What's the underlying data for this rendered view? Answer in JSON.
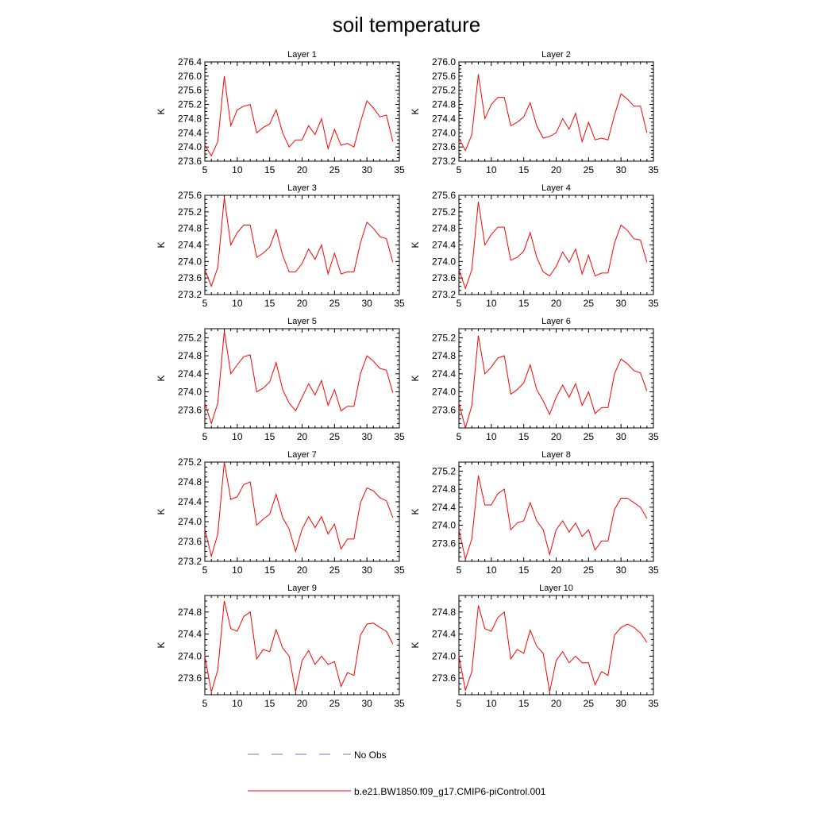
{
  "title": "soil temperature",
  "legend": {
    "items": [
      {
        "label": "No Obs",
        "color": "#7777cc",
        "dash": "dashed"
      },
      {
        "label": "b.e21.BW1850.f09_g17.CMIP6-piControl.001",
        "color": "#ff0000",
        "dash": "solid"
      }
    ]
  },
  "chart_data": [
    {
      "type": "line",
      "title": "Layer 1",
      "ylabel": "K",
      "xlim": [
        5,
        35
      ],
      "xticks": [
        5,
        10,
        15,
        20,
        25,
        30,
        35
      ],
      "ylim": [
        273.6,
        276.4
      ],
      "yticks": [
        273.6,
        274.0,
        274.4,
        274.8,
        275.2,
        275.6,
        276.0,
        276.4
      ],
      "x": [
        5,
        6,
        7,
        8,
        9,
        10,
        11,
        12,
        13,
        14,
        15,
        16,
        17,
        18,
        19,
        20,
        21,
        22,
        23,
        24,
        25,
        26,
        27,
        28,
        29,
        30,
        31,
        32,
        33,
        34
      ],
      "series": [
        {
          "name": "b.e21.BW1850.f09_g17.CMIP6-piControl.001",
          "values": [
            274.05,
            273.75,
            274.15,
            276.0,
            274.6,
            275.05,
            275.15,
            275.2,
            274.4,
            274.55,
            274.65,
            275.05,
            274.4,
            274.0,
            274.2,
            274.2,
            274.6,
            274.35,
            274.8,
            273.95,
            274.5,
            274.05,
            274.1,
            274.0,
            274.7,
            275.3,
            275.1,
            274.85,
            274.9,
            274.15
          ]
        }
      ]
    },
    {
      "type": "line",
      "title": "Layer 2",
      "ylabel": "K",
      "xlim": [
        5,
        35
      ],
      "xticks": [
        5,
        10,
        15,
        20,
        25,
        30,
        35
      ],
      "ylim": [
        273.2,
        276.0
      ],
      "yticks": [
        273.2,
        273.6,
        274.0,
        274.4,
        274.8,
        275.2,
        275.6,
        276.0
      ],
      "x": [
        5,
        6,
        7,
        8,
        9,
        10,
        11,
        12,
        13,
        14,
        15,
        16,
        17,
        18,
        19,
        20,
        21,
        22,
        23,
        24,
        25,
        26,
        27,
        28,
        29,
        30,
        31,
        32,
        33,
        34
      ],
      "series": [
        {
          "name": "b.e21.BW1850.f09_g17.CMIP6-piControl.001",
          "values": [
            273.85,
            273.5,
            273.95,
            275.65,
            274.4,
            274.8,
            275.0,
            275.0,
            274.2,
            274.3,
            274.45,
            274.85,
            274.2,
            273.85,
            273.9,
            274.0,
            274.4,
            274.1,
            274.55,
            273.75,
            274.3,
            273.8,
            273.85,
            273.8,
            274.5,
            275.1,
            274.95,
            274.75,
            274.75,
            274.0
          ]
        }
      ]
    },
    {
      "type": "line",
      "title": "Layer 3",
      "ylabel": "K",
      "xlim": [
        5,
        35
      ],
      "xticks": [
        5,
        10,
        15,
        20,
        25,
        30,
        35
      ],
      "ylim": [
        273.2,
        275.6
      ],
      "yticks": [
        273.2,
        273.6,
        274.0,
        274.4,
        274.8,
        275.2,
        275.6
      ],
      "x": [
        5,
        6,
        7,
        8,
        9,
        10,
        11,
        12,
        13,
        14,
        15,
        16,
        17,
        18,
        19,
        20,
        21,
        22,
        23,
        24,
        25,
        26,
        27,
        28,
        29,
        30,
        31,
        32,
        33,
        34
      ],
      "series": [
        {
          "name": "b.e21.BW1850.f09_g17.CMIP6-piControl.001",
          "values": [
            273.8,
            273.4,
            273.85,
            275.55,
            274.4,
            274.7,
            274.88,
            274.88,
            274.1,
            274.2,
            274.35,
            274.77,
            274.15,
            273.75,
            273.75,
            273.95,
            274.3,
            274.05,
            274.4,
            273.7,
            274.2,
            273.7,
            273.75,
            273.75,
            274.45,
            274.95,
            274.8,
            274.6,
            274.55,
            273.98
          ]
        }
      ]
    },
    {
      "type": "line",
      "title": "Layer 4",
      "ylabel": "K",
      "xlim": [
        5,
        35
      ],
      "xticks": [
        5,
        10,
        15,
        20,
        25,
        30,
        35
      ],
      "ylim": [
        273.2,
        275.6
      ],
      "yticks": [
        273.2,
        273.6,
        274.0,
        274.4,
        274.8,
        275.2,
        275.6
      ],
      "x": [
        5,
        6,
        7,
        8,
        9,
        10,
        11,
        12,
        13,
        14,
        15,
        16,
        17,
        18,
        19,
        20,
        21,
        22,
        23,
        24,
        25,
        26,
        27,
        28,
        29,
        30,
        31,
        32,
        33,
        34
      ],
      "series": [
        {
          "name": "b.e21.BW1850.f09_g17.CMIP6-piControl.001",
          "values": [
            273.8,
            273.35,
            273.8,
            275.45,
            274.4,
            274.65,
            274.83,
            274.83,
            274.03,
            274.1,
            274.25,
            274.7,
            274.1,
            273.75,
            273.65,
            273.88,
            274.23,
            273.98,
            274.3,
            273.7,
            274.15,
            273.65,
            273.72,
            273.72,
            274.45,
            274.88,
            274.75,
            274.55,
            274.52,
            273.98
          ]
        }
      ]
    },
    {
      "type": "line",
      "title": "Layer 5",
      "ylabel": "K",
      "xlim": [
        5,
        35
      ],
      "xticks": [
        5,
        10,
        15,
        20,
        25,
        30,
        35
      ],
      "ylim": [
        273.2,
        275.4
      ],
      "yticks": [
        273.6,
        274.0,
        274.4,
        274.8,
        275.2
      ],
      "x": [
        5,
        6,
        7,
        8,
        9,
        10,
        11,
        12,
        13,
        14,
        15,
        16,
        17,
        18,
        19,
        20,
        21,
        22,
        23,
        24,
        25,
        26,
        27,
        28,
        29,
        30,
        31,
        32,
        33,
        34
      ],
      "series": [
        {
          "name": "b.e21.BW1850.f09_g17.CMIP6-piControl.001",
          "values": [
            273.75,
            273.3,
            273.75,
            275.35,
            274.4,
            274.6,
            274.78,
            274.82,
            274.0,
            274.08,
            274.22,
            274.65,
            274.05,
            273.75,
            273.58,
            273.88,
            274.18,
            273.93,
            274.25,
            273.7,
            274.05,
            273.58,
            273.68,
            273.68,
            274.4,
            274.8,
            274.68,
            274.52,
            274.48,
            273.98
          ]
        }
      ]
    },
    {
      "type": "line",
      "title": "Layer 6",
      "ylabel": "K",
      "xlim": [
        5,
        35
      ],
      "xticks": [
        5,
        10,
        15,
        20,
        25,
        30,
        35
      ],
      "ylim": [
        273.2,
        275.4
      ],
      "yticks": [
        273.6,
        274.0,
        274.4,
        274.8,
        275.2
      ],
      "x": [
        5,
        6,
        7,
        8,
        9,
        10,
        11,
        12,
        13,
        14,
        15,
        16,
        17,
        18,
        19,
        20,
        21,
        22,
        23,
        24,
        25,
        26,
        27,
        28,
        29,
        30,
        31,
        32,
        33,
        34
      ],
      "series": [
        {
          "name": "b.e21.BW1850.f09_g17.CMIP6-piControl.001",
          "values": [
            273.75,
            273.2,
            273.7,
            275.25,
            274.4,
            274.55,
            274.75,
            274.8,
            273.95,
            274.05,
            274.2,
            274.6,
            274.05,
            273.8,
            273.5,
            273.88,
            274.15,
            273.88,
            274.18,
            273.7,
            274.0,
            273.52,
            273.65,
            273.65,
            274.4,
            274.73,
            274.62,
            274.47,
            274.42,
            274.02
          ]
        }
      ]
    },
    {
      "type": "line",
      "title": "Layer 7",
      "ylabel": "K",
      "xlim": [
        5,
        35
      ],
      "xticks": [
        5,
        10,
        15,
        20,
        25,
        30,
        35
      ],
      "ylim": [
        273.2,
        275.2
      ],
      "yticks": [
        273.2,
        273.6,
        274.0,
        274.4,
        274.8,
        275.2
      ],
      "x": [
        5,
        6,
        7,
        8,
        9,
        10,
        11,
        12,
        13,
        14,
        15,
        16,
        17,
        18,
        19,
        20,
        21,
        22,
        23,
        24,
        25,
        26,
        27,
        28,
        29,
        30,
        31,
        32,
        33,
        34
      ],
      "series": [
        {
          "name": "b.e21.BW1850.f09_g17.CMIP6-piControl.001",
          "values": [
            273.85,
            273.3,
            273.75,
            275.2,
            274.45,
            274.5,
            274.75,
            274.8,
            273.93,
            274.05,
            274.15,
            274.55,
            274.08,
            273.85,
            273.4,
            273.85,
            274.1,
            273.88,
            274.1,
            273.75,
            273.95,
            273.45,
            273.65,
            273.65,
            274.38,
            274.68,
            274.62,
            274.48,
            274.42,
            274.08
          ]
        }
      ]
    },
    {
      "type": "line",
      "title": "Layer 8",
      "ylabel": "K",
      "xlim": [
        5,
        35
      ],
      "xticks": [
        5,
        10,
        15,
        20,
        25,
        30,
        35
      ],
      "ylim": [
        273.2,
        275.4
      ],
      "yticks": [
        273.6,
        274.0,
        274.4,
        274.8,
        275.2
      ],
      "x": [
        5,
        6,
        7,
        8,
        9,
        10,
        11,
        12,
        13,
        14,
        15,
        16,
        17,
        18,
        19,
        20,
        21,
        22,
        23,
        24,
        25,
        26,
        27,
        28,
        29,
        30,
        31,
        32,
        33,
        34
      ],
      "series": [
        {
          "name": "b.e21.BW1850.f09_g17.CMIP6-piControl.001",
          "values": [
            273.9,
            273.25,
            273.7,
            275.1,
            274.45,
            274.45,
            274.7,
            274.8,
            273.9,
            274.05,
            274.1,
            274.5,
            274.1,
            273.9,
            273.35,
            273.9,
            274.1,
            273.85,
            274.05,
            273.75,
            273.9,
            273.45,
            273.65,
            273.65,
            274.35,
            274.6,
            274.6,
            274.5,
            274.4,
            274.15
          ]
        }
      ]
    },
    {
      "type": "line",
      "title": "Layer 9",
      "ylabel": "K",
      "xlim": [
        5,
        35
      ],
      "xticks": [
        5,
        10,
        15,
        20,
        25,
        30,
        35
      ],
      "ylim": [
        273.3,
        275.1
      ],
      "yticks": [
        273.6,
        274.0,
        274.4,
        274.8
      ],
      "x": [
        5,
        6,
        7,
        8,
        9,
        10,
        11,
        12,
        13,
        14,
        15,
        16,
        17,
        18,
        19,
        20,
        21,
        22,
        23,
        24,
        25,
        26,
        27,
        28,
        29,
        30,
        31,
        32,
        33,
        34
      ],
      "series": [
        {
          "name": "b.e21.BW1850.f09_g17.CMIP6-piControl.001",
          "values": [
            274.0,
            273.35,
            273.75,
            275.0,
            274.5,
            274.45,
            274.72,
            274.8,
            273.95,
            274.12,
            274.08,
            274.48,
            274.15,
            274.0,
            273.35,
            273.92,
            274.1,
            273.85,
            274.0,
            273.85,
            273.9,
            273.45,
            273.7,
            273.65,
            274.38,
            274.58,
            274.6,
            274.52,
            274.45,
            274.22
          ]
        }
      ]
    },
    {
      "type": "line",
      "title": "Layer 10",
      "ylabel": "K",
      "xlim": [
        5,
        35
      ],
      "xticks": [
        5,
        10,
        15,
        20,
        25,
        30,
        35
      ],
      "ylim": [
        273.3,
        275.1
      ],
      "yticks": [
        273.6,
        274.0,
        274.4,
        274.8
      ],
      "x": [
        5,
        6,
        7,
        8,
        9,
        10,
        11,
        12,
        13,
        14,
        15,
        16,
        17,
        18,
        19,
        20,
        21,
        22,
        23,
        24,
        25,
        26,
        27,
        28,
        29,
        30,
        31,
        32,
        33,
        34
      ],
      "series": [
        {
          "name": "b.e21.BW1850.f09_g17.CMIP6-piControl.001",
          "values": [
            274.0,
            273.38,
            273.72,
            274.92,
            274.5,
            274.45,
            274.7,
            274.8,
            273.95,
            274.12,
            274.05,
            274.47,
            274.18,
            274.05,
            273.35,
            273.92,
            274.08,
            273.88,
            274.0,
            273.88,
            273.88,
            273.48,
            273.72,
            273.65,
            274.38,
            274.52,
            274.58,
            274.52,
            274.42,
            274.25
          ]
        }
      ]
    }
  ]
}
